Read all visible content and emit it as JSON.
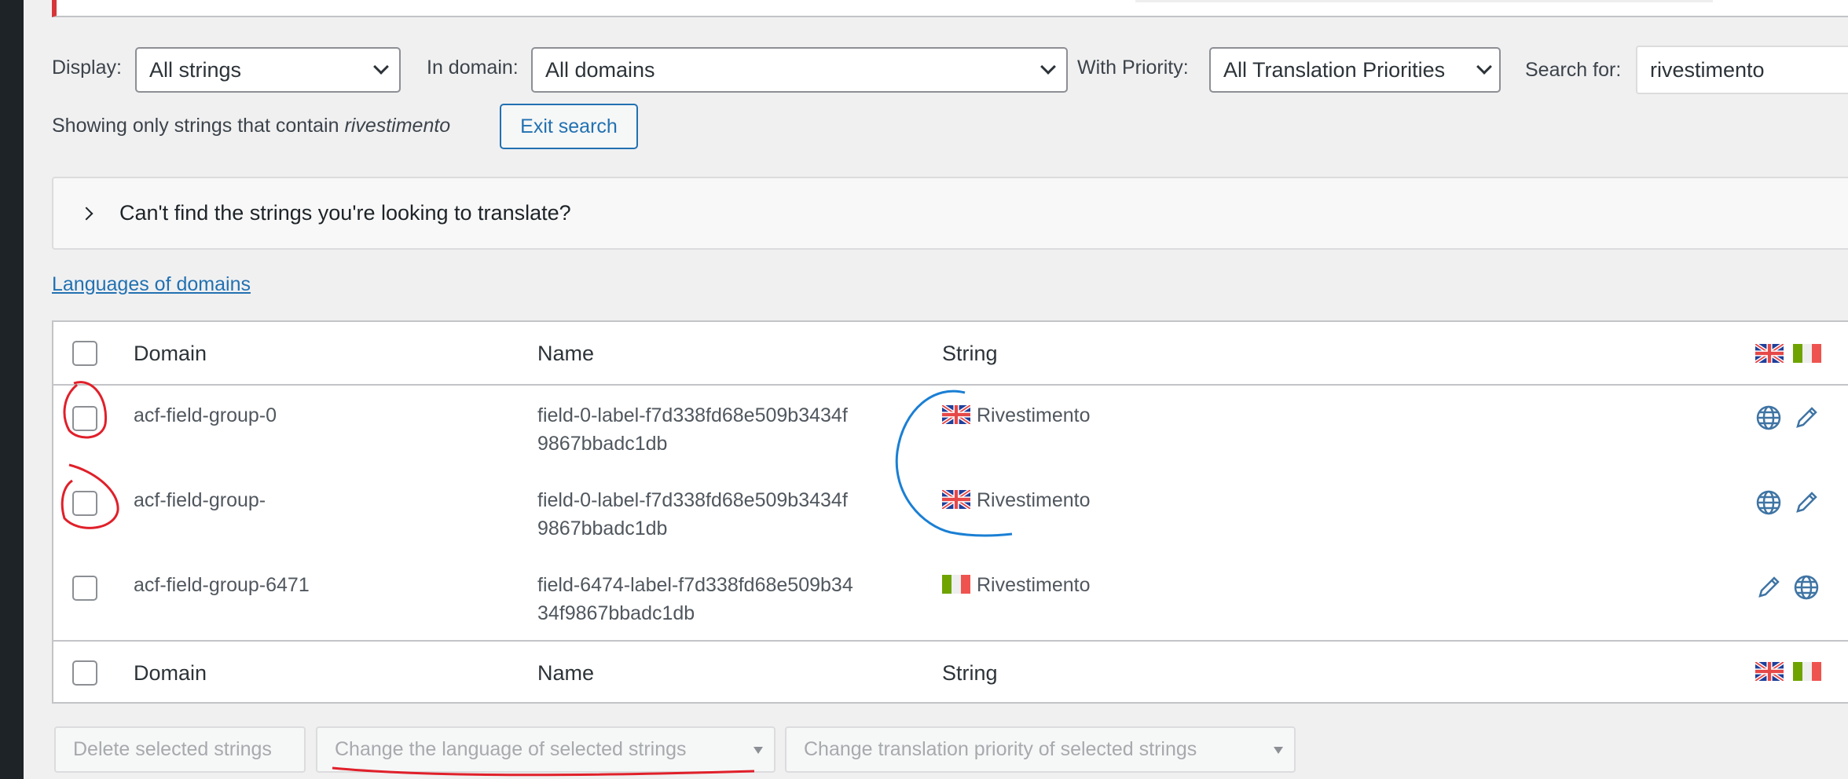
{
  "filters": {
    "display_label": "Display:",
    "display_value": "All strings",
    "domain_label": "In domain:",
    "domain_value": "All domains",
    "priority_label": "With Priority:",
    "priority_value": "All Translation Priorities",
    "search_label": "Search for:",
    "search_value": "rivestimento"
  },
  "search_status": {
    "prefix": "Showing only strings that contain ",
    "term": "rivestimento",
    "exit_label": "Exit search"
  },
  "help_panel": {
    "label": "Can't find the strings you're looking to translate?"
  },
  "languages_link": "Languages of domains",
  "table": {
    "columns": [
      "Domain",
      "Name",
      "String"
    ],
    "header_flags": [
      "uk-flag",
      "italy-flag"
    ],
    "rows": [
      {
        "domain": "acf-field-group-0",
        "name_line1": "field-0-label-f7d338fd68e509b3434f",
        "name_line2": "9867bbadc1db",
        "string": "Rivestimento",
        "flag": "uk-flag",
        "actions": [
          "globe-icon",
          "pencil-icon"
        ]
      },
      {
        "domain": "acf-field-group-",
        "name_line1": "field-0-label-f7d338fd68e509b3434f",
        "name_line2": "9867bbadc1db",
        "string": "Rivestimento",
        "flag": "uk-flag",
        "actions": [
          "globe-icon",
          "pencil-icon"
        ]
      },
      {
        "domain": "acf-field-group-6471",
        "name_line1": "field-6474-label-f7d338fd68e509b34",
        "name_line2": "34f9867bbadc1db",
        "string": "Rivestimento",
        "flag": "italy-flag",
        "actions": [
          "pencil-icon",
          "globe-icon"
        ]
      }
    ]
  },
  "bulk_actions": {
    "delete": "Delete selected strings",
    "change_language": "Change the language of selected strings",
    "change_priority": "Change translation priority of selected strings"
  },
  "colors": {
    "accent": "#2271b1",
    "annotation_red": "#e0202a",
    "annotation_blue": "#1a7fd4",
    "icon": "#3f74a4"
  }
}
